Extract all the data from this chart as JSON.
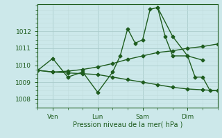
{
  "bg_color": "#cce8ea",
  "grid_color_major": "#aacccc",
  "grid_color_minor": "#c0dddd",
  "line_color": "#1e5c1e",
  "marker_color": "#1e5c1e",
  "ylabel_ticks": [
    1008,
    1009,
    1010,
    1011,
    1012
  ],
  "ylim": [
    1007.5,
    1013.6
  ],
  "x_tick_labels": [
    "Ven",
    "Lun",
    "Sam",
    "Dim"
  ],
  "x_tick_positions": [
    8,
    32,
    56,
    80
  ],
  "xlim": [
    0,
    96
  ],
  "xlabel": "Pression niveau de la mer( hPa )",
  "series1_x": [
    0,
    8,
    16,
    24,
    32,
    40,
    44,
    48,
    52,
    56,
    60,
    64,
    68,
    72,
    80,
    88
  ],
  "series1_y": [
    1009.7,
    1010.4,
    1009.3,
    1009.6,
    1008.4,
    1009.6,
    1010.55,
    1012.15,
    1011.3,
    1011.5,
    1013.3,
    1013.4,
    1011.7,
    1010.55,
    1010.55,
    1010.3
  ],
  "series2_x": [
    0,
    8,
    16,
    24,
    32,
    40,
    48,
    56,
    64,
    72,
    80,
    88,
    96
  ],
  "series2_y": [
    1009.7,
    1009.6,
    1009.55,
    1009.5,
    1009.45,
    1009.3,
    1009.15,
    1009.0,
    1008.85,
    1008.7,
    1008.6,
    1008.55,
    1008.5
  ],
  "series3_x": [
    0,
    8,
    16,
    24,
    32,
    40,
    48,
    56,
    64,
    72,
    80,
    88,
    96
  ],
  "series3_y": [
    1009.7,
    1009.6,
    1009.65,
    1009.75,
    1009.9,
    1010.1,
    1010.35,
    1010.55,
    1010.75,
    1010.85,
    1011.0,
    1011.1,
    1011.25
  ],
  "series4_x": [
    64,
    72,
    80,
    84,
    88,
    92,
    96
  ],
  "series4_y": [
    1013.4,
    1011.7,
    1010.55,
    1009.3,
    1009.3,
    1008.5,
    1008.5
  ]
}
